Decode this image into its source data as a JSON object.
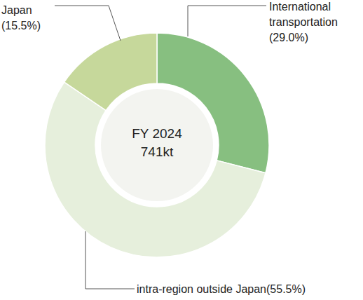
{
  "chart_data": {
    "type": "donut",
    "categories": [
      "International transportation",
      "intra-region outside Japan",
      "Japan"
    ],
    "values": [
      29.0,
      55.5,
      15.5
    ],
    "value_labels": [
      "(29.0%)",
      "(55.5%)",
      "(15.5%)"
    ],
    "colors": [
      "#87bf80",
      "#e6efdc",
      "#c6d89b"
    ],
    "annotations": [
      "FY 2024",
      "741kt"
    ],
    "data_labels": true
  }
}
